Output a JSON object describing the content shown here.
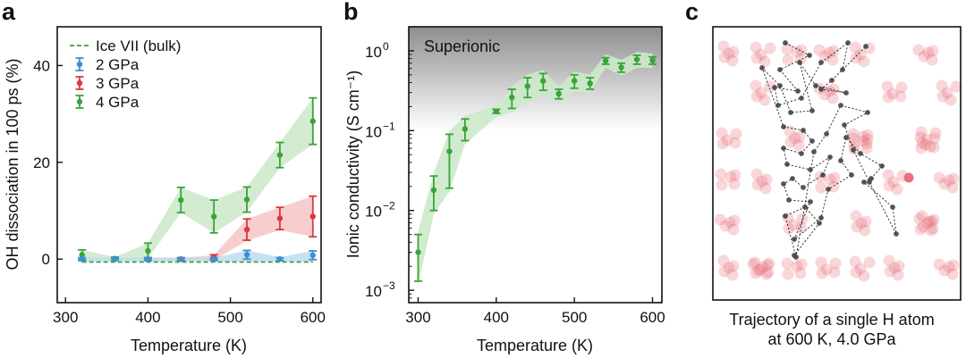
{
  "colors": {
    "ice_vii": "#3aa33a",
    "p2": "#3b8fd4",
    "p3": "#d63a3a",
    "p4": "#3aa33a",
    "p2_band": "#bcdcf2",
    "p3_band": "#f6c4c4",
    "p4_band": "#cbe9c9",
    "superionic_dark": "#8e8e8e",
    "superionic_light": "#ffffff",
    "h_atom": "#444444",
    "o_atom": "#e76a78"
  },
  "chart_data": [
    {
      "panel": "a",
      "type": "line",
      "xlabel": "Temperature (K)",
      "ylabel": "OH dissociation in 100 ps (%)",
      "xlim": [
        290,
        610
      ],
      "ylim": [
        -9,
        48
      ],
      "xticks": [
        300,
        400,
        500,
        600
      ],
      "yticks": [
        0,
        20,
        40
      ],
      "legend_position": "top-left",
      "series": [
        {
          "key": "ice",
          "name": "Ice VII (bulk)",
          "style": "dashed",
          "x": [
            320,
            600
          ],
          "y": [
            -0.6,
            -0.6
          ]
        },
        {
          "key": "p2",
          "name": "2 GPa",
          "x": [
            320,
            360,
            400,
            440,
            480,
            520,
            560,
            600
          ],
          "y": [
            0,
            0,
            0,
            0,
            0,
            0.9,
            0,
            0.8
          ],
          "err": [
            0.3,
            0.2,
            0.3,
            0.2,
            0.3,
            0.9,
            0.3,
            0.9
          ],
          "band_lo": [
            -0.5,
            -0.5,
            -0.5,
            -0.5,
            -0.5,
            -0.5,
            -0.5,
            -0.5
          ],
          "band_hi": [
            0.3,
            0.3,
            0.3,
            0.3,
            0.3,
            1.8,
            0.4,
            1.7
          ]
        },
        {
          "key": "p3",
          "name": "3 GPa",
          "x": [
            400,
            440,
            480,
            520,
            560,
            600
          ],
          "y": [
            0,
            0,
            0.4,
            6.1,
            8.4,
            8.8
          ],
          "err": [
            0.3,
            0.3,
            0.5,
            2.2,
            2.3,
            4.2
          ],
          "band_lo": [
            -0.3,
            -0.3,
            -0.2,
            3.8,
            6.0,
            4.6
          ],
          "band_hi": [
            0.3,
            0.3,
            0.8,
            8.3,
            10.7,
            13.0
          ]
        },
        {
          "key": "p4",
          "name": "4 GPa",
          "x": [
            320,
            360,
            400,
            440,
            480,
            520,
            560,
            600
          ],
          "y": [
            0.9,
            0.1,
            1.7,
            12.2,
            8.8,
            12.3,
            21.5,
            28.5
          ],
          "err": [
            1.0,
            0.3,
            1.6,
            2.6,
            3.4,
            2.6,
            2.6,
            4.8
          ],
          "band_lo": [
            -0.1,
            -0.2,
            0.1,
            9.6,
            5.4,
            9.7,
            18.9,
            23.7
          ],
          "band_hi": [
            1.9,
            0.4,
            3.3,
            14.8,
            12.2,
            14.9,
            24.1,
            33.3
          ]
        }
      ]
    },
    {
      "panel": "b",
      "type": "line",
      "yscale": "log",
      "xlabel": "Temperature (K)",
      "ylabel": "Ionic conductivity (S cm⁻¹)",
      "xlim": [
        288,
        612
      ],
      "ylim": [
        0.0007,
        2.0
      ],
      "xticks": [
        300,
        400,
        500,
        600
      ],
      "yticks": [
        {
          "value": 0.001,
          "label": "10",
          "exp": "−3"
        },
        {
          "value": 0.01,
          "label": "10",
          "exp": "−2"
        },
        {
          "value": 0.1,
          "label": "10",
          "exp": "−1"
        },
        {
          "value": 1,
          "label": "10",
          "exp": "0"
        }
      ],
      "superionic_label": "Superionic",
      "series": [
        {
          "key": "p4",
          "name": "4 GPa",
          "x": [
            300,
            320,
            340,
            360,
            400,
            420,
            440,
            460,
            480,
            500,
            520,
            540,
            560,
            580,
            600
          ],
          "y": [
            0.003,
            0.018,
            0.055,
            0.105,
            0.175,
            0.26,
            0.36,
            0.42,
            0.29,
            0.42,
            0.39,
            0.75,
            0.62,
            0.78,
            0.76
          ],
          "lo": [
            0.0013,
            0.01,
            0.019,
            0.075,
            0.165,
            0.19,
            0.26,
            0.32,
            0.25,
            0.34,
            0.33,
            0.68,
            0.54,
            0.68,
            0.68
          ],
          "hi": [
            0.005,
            0.027,
            0.09,
            0.14,
            0.185,
            0.33,
            0.46,
            0.52,
            0.33,
            0.5,
            0.46,
            0.82,
            0.7,
            0.88,
            0.84
          ]
        }
      ]
    }
  ],
  "panels": {
    "a": {
      "label": "a"
    },
    "b": {
      "label": "b"
    },
    "c": {
      "label": "c",
      "caption_line1": "Trajectory of a single H atom",
      "caption_line2": "at 600 K, 4.0 GPa"
    }
  }
}
